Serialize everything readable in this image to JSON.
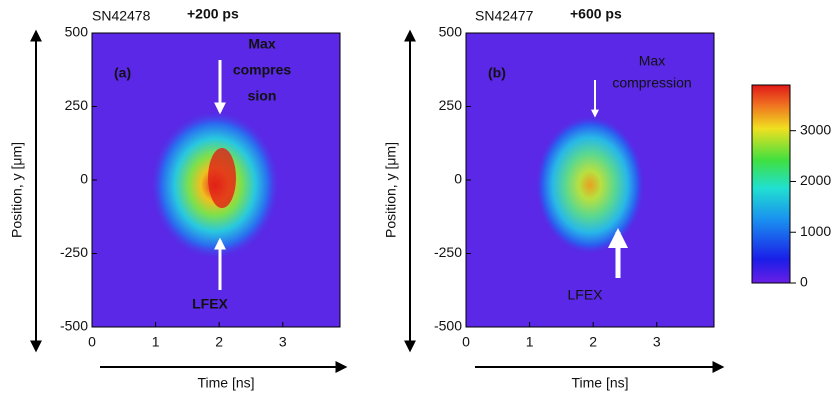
{
  "chart_data": [
    {
      "type": "heatmap",
      "shot": "SN42478",
      "delay": "+200 ps",
      "delay_color": "#e03a1e",
      "panel": "(a)",
      "annotations": [
        [
          "Max",
          "compres",
          "sion"
        ],
        [
          "LFEX"
        ]
      ],
      "xlabel": "Time [ns]",
      "ylabel": "Position, y [μm]",
      "xlim": [
        0,
        3.9
      ],
      "xticks": [
        0,
        1,
        2,
        3
      ],
      "ylim": [
        -500,
        500
      ],
      "yticks": [
        -500,
        -250,
        0,
        250,
        500
      ]
    },
    {
      "type": "heatmap",
      "shot": "SN42477",
      "delay": "+600 ps",
      "delay_color": "#111111",
      "panel": "(b)",
      "annotations": [
        [
          "Max",
          "compression"
        ],
        [
          "LFEX"
        ]
      ],
      "xlabel": "Time [ns]",
      "ylabel": "Position, y [μm]",
      "xlim": [
        0,
        3.9
      ],
      "xticks": [
        0,
        1,
        2,
        3
      ],
      "ylim": [
        -500,
        500
      ],
      "yticks": [
        -500,
        -250,
        0,
        250,
        500
      ]
    }
  ],
  "colorbar": {
    "lim": [
      0,
      3900
    ],
    "ticks": [
      0,
      1000,
      2000,
      3000
    ]
  }
}
